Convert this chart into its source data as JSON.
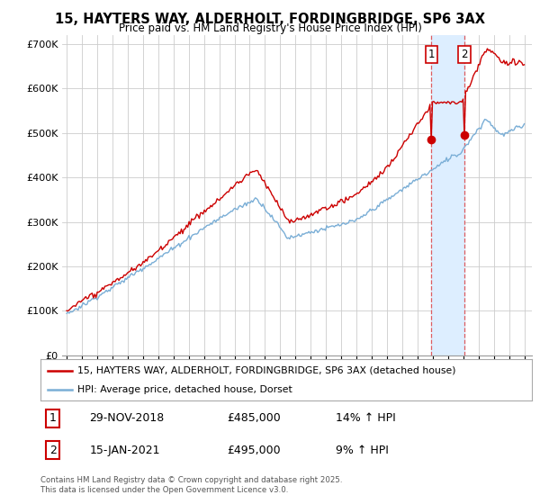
{
  "title": "15, HAYTERS WAY, ALDERHOLT, FORDINGBRIDGE, SP6 3AX",
  "subtitle": "Price paid vs. HM Land Registry's House Price Index (HPI)",
  "ylim": [
    0,
    720000
  ],
  "yticks": [
    0,
    100000,
    200000,
    300000,
    400000,
    500000,
    600000,
    700000
  ],
  "ytick_labels": [
    "£0",
    "£100K",
    "£200K",
    "£300K",
    "£400K",
    "£500K",
    "£600K",
    "£700K"
  ],
  "line1_color": "#cc0000",
  "line2_color": "#7aaed6",
  "line1_label": "15, HAYTERS WAY, ALDERHOLT, FORDINGBRIDGE, SP6 3AX (detached house)",
  "line2_label": "HPI: Average price, detached house, Dorset",
  "annotation1_date": "29-NOV-2018",
  "annotation1_price": "£485,000",
  "annotation1_hpi": "14% ↑ HPI",
  "annotation2_date": "15-JAN-2021",
  "annotation2_price": "£495,000",
  "annotation2_hpi": "9% ↑ HPI",
  "footer": "Contains HM Land Registry data © Crown copyright and database right 2025.\nThis data is licensed under the Open Government Licence v3.0.",
  "background_color": "#ffffff",
  "grid_color": "#cccccc",
  "vline_color": "#dd4444",
  "shade_color": "#ddeeff",
  "box_edge_color": "#cc0000"
}
